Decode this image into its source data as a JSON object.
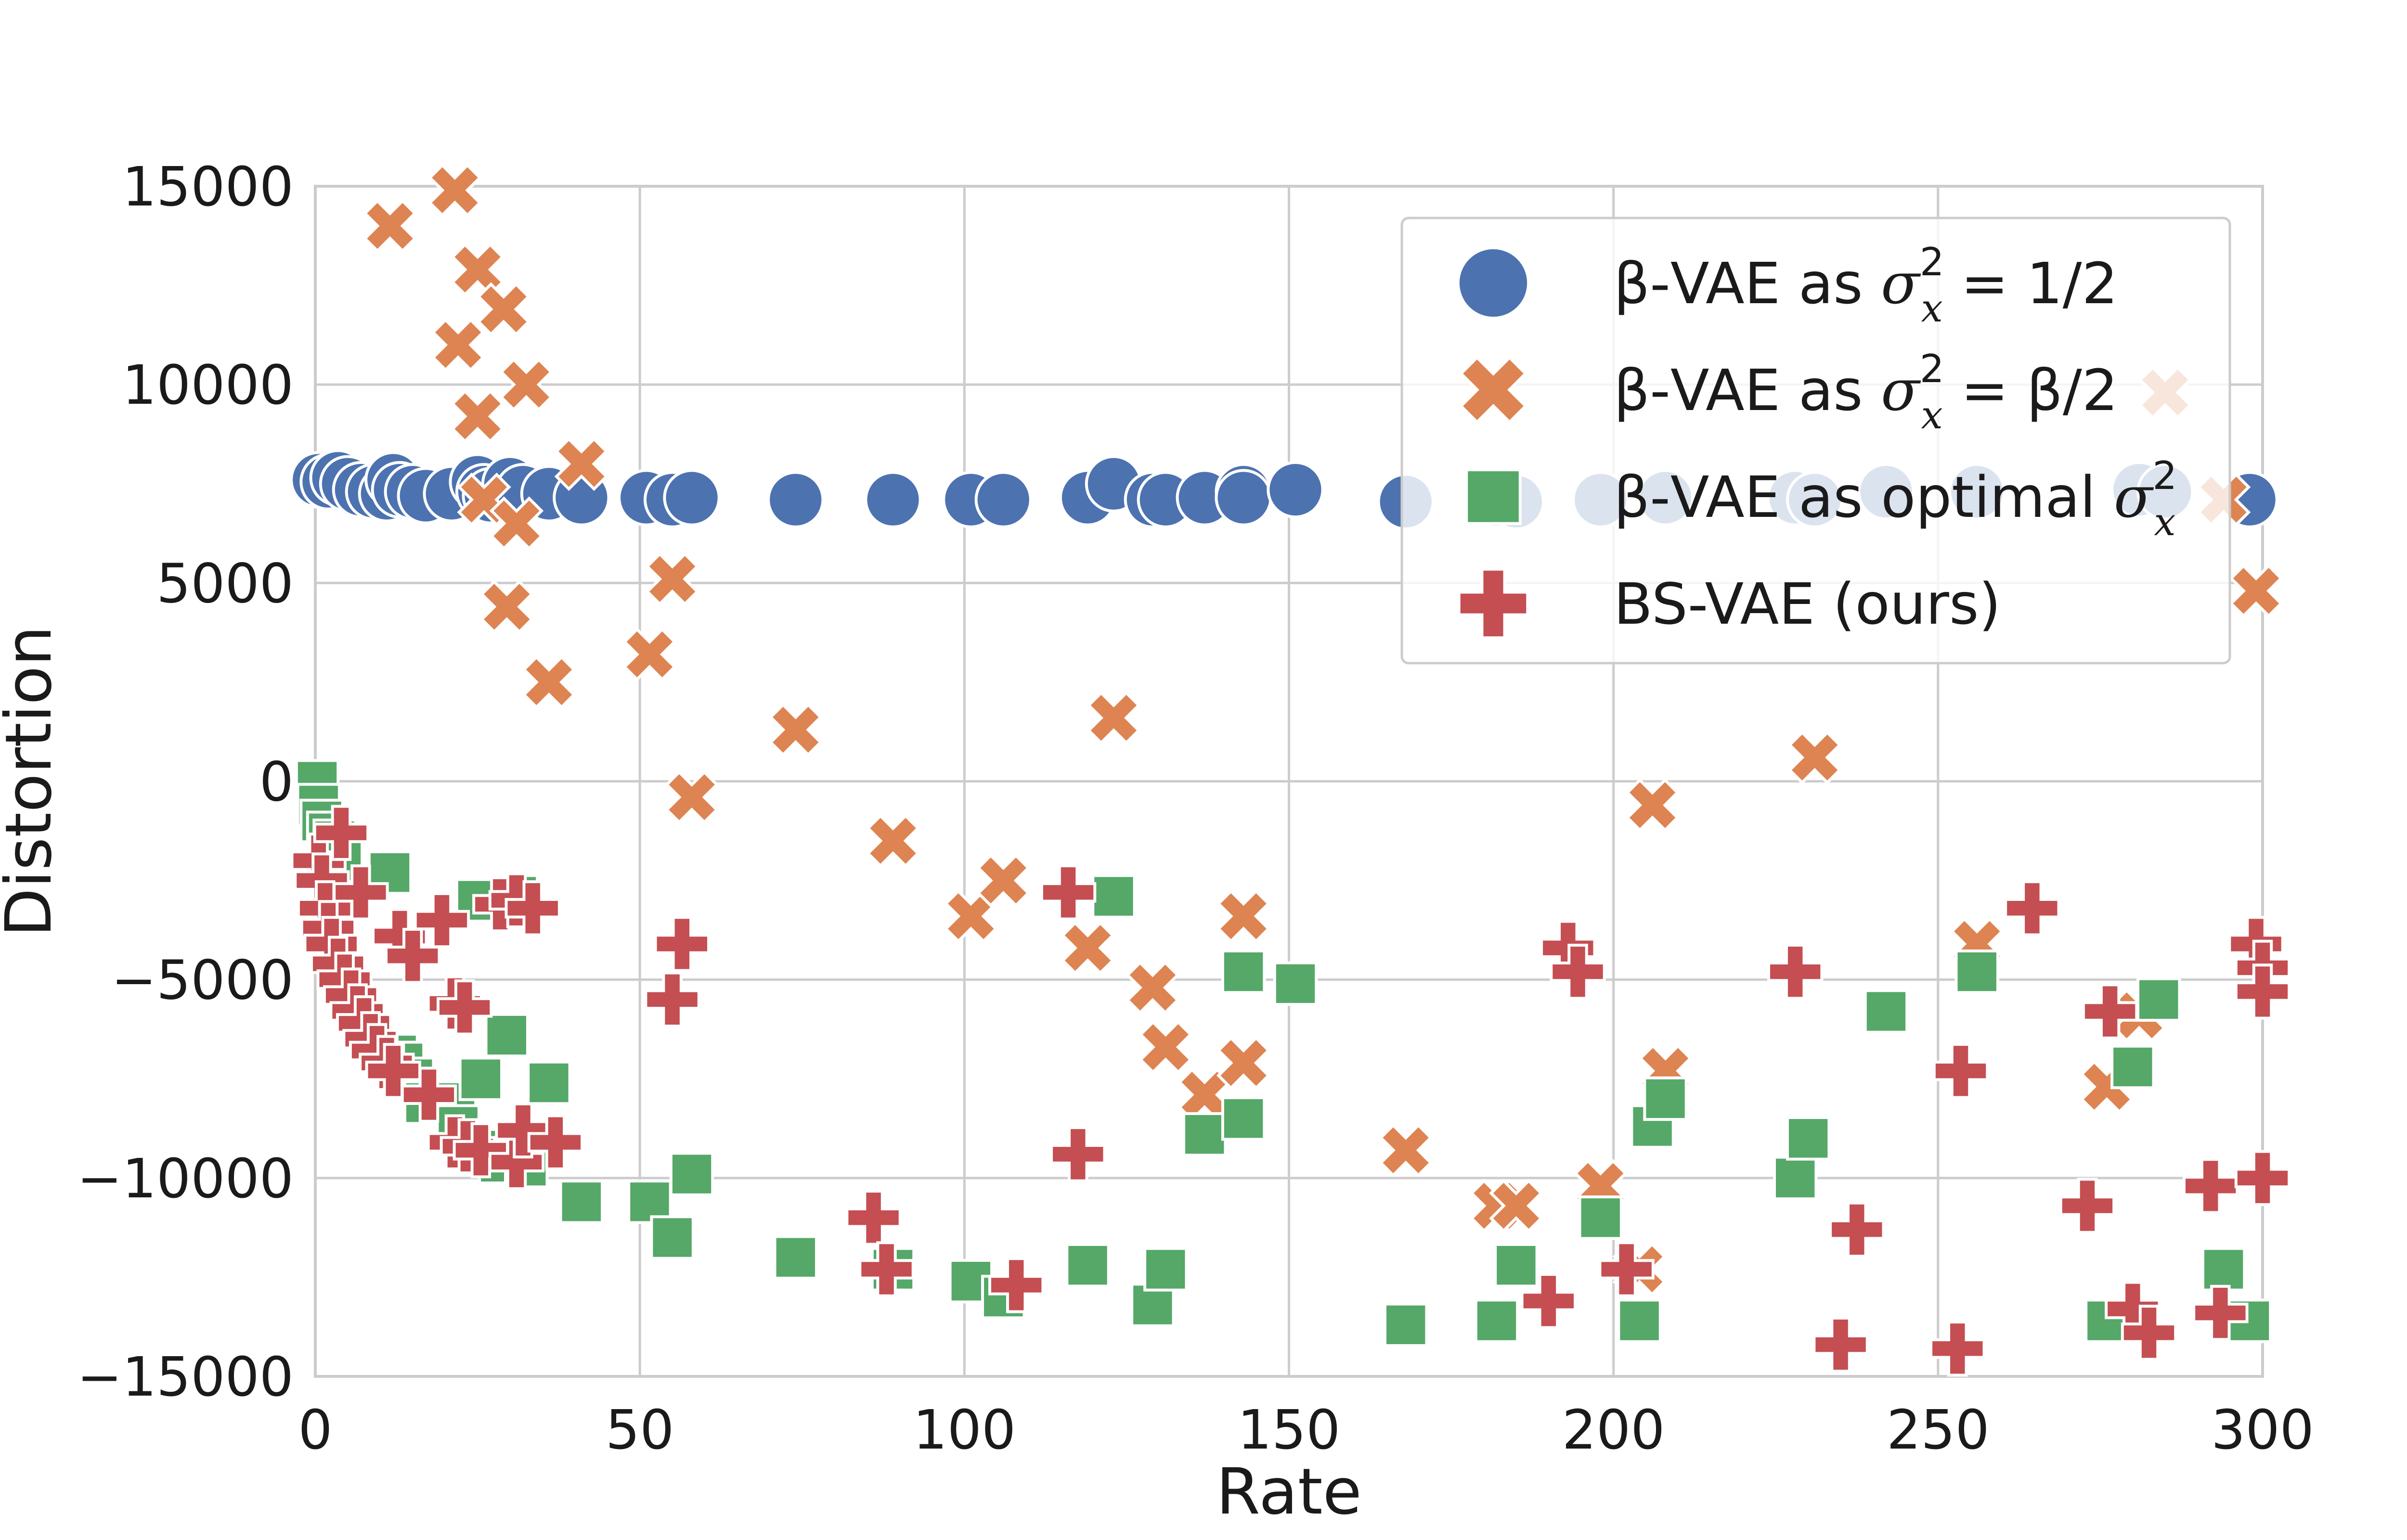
{
  "chart_data": {
    "type": "scatter",
    "xlabel": "Rate",
    "ylabel": "Distortion",
    "xlim": [
      0,
      300
    ],
    "ylim": [
      -15000,
      15000
    ],
    "xticks": [
      "0",
      "50",
      "100",
      "150",
      "200",
      "250",
      "300"
    ],
    "yticks": [
      "15000",
      "10000",
      "5000",
      "0",
      "−5000",
      "−10000",
      "−15000"
    ],
    "grid": true,
    "legend_position": "top-right",
    "series": [
      {
        "name": "β-VAE as σx2 = 1/2",
        "legend": {
          "pre": "β-VAE as ",
          "sym": "σ",
          "sub": "x",
          "sup": "2",
          "post": " = 1/2"
        },
        "marker": "circle",
        "color": "#4c72b0",
        "points": [
          [
            0.5,
            7600
          ],
          [
            2,
            7550
          ],
          [
            3.5,
            7650
          ],
          [
            5,
            7500
          ],
          [
            7,
            7350
          ],
          [
            9,
            7300
          ],
          [
            11,
            7250
          ],
          [
            12,
            7600
          ],
          [
            13,
            7350
          ],
          [
            15,
            7300
          ],
          [
            17,
            7200
          ],
          [
            21,
            7250
          ],
          [
            25,
            7550
          ],
          [
            26,
            7300
          ],
          [
            27,
            7200
          ],
          [
            30,
            7500
          ],
          [
            32,
            7300
          ],
          [
            36,
            7250
          ],
          [
            41,
            7150
          ],
          [
            51,
            7150
          ],
          [
            55,
            7100
          ],
          [
            58,
            7150
          ],
          [
            74,
            7100
          ],
          [
            89,
            7100
          ],
          [
            101,
            7100
          ],
          [
            106,
            7100
          ],
          [
            119,
            7150
          ],
          [
            123,
            7500
          ],
          [
            129,
            7100
          ],
          [
            131,
            7100
          ],
          [
            137,
            7150
          ],
          [
            143,
            7300
          ],
          [
            143,
            7150
          ],
          [
            151,
            7350
          ],
          [
            168,
            7050
          ],
          [
            182,
            7100
          ],
          [
            185,
            7050
          ],
          [
            198,
            7100
          ],
          [
            208,
            7150
          ],
          [
            228,
            7150
          ],
          [
            231,
            7100
          ],
          [
            242,
            7300
          ],
          [
            256,
            7300
          ],
          [
            281,
            7350
          ],
          [
            285,
            7300
          ],
          [
            298,
            7100
          ]
        ]
      },
      {
        "name": "β-VAE as σx2 = β/2",
        "legend": {
          "pre": "β-VAE as ",
          "sym": "σ",
          "sub": "x",
          "sup": "2",
          "post": " = β/2"
        },
        "marker": "x",
        "color": "#dd8452",
        "points": [
          [
            11.5,
            14000
          ],
          [
            21.5,
            14900
          ],
          [
            22,
            11000
          ],
          [
            25,
            12900
          ],
          [
            25,
            9200
          ],
          [
            26,
            7100
          ],
          [
            29,
            11900
          ],
          [
            29.5,
            4400
          ],
          [
            31,
            6500
          ],
          [
            32.5,
            10000
          ],
          [
            36,
            2500
          ],
          [
            41,
            8000
          ],
          [
            51.5,
            3200
          ],
          [
            55,
            5100
          ],
          [
            58,
            -400
          ],
          [
            74,
            1300
          ],
          [
            89,
            -1500
          ],
          [
            101,
            -3400
          ],
          [
            106,
            -2500
          ],
          [
            119,
            -4200
          ],
          [
            123,
            1600
          ],
          [
            129,
            -5200
          ],
          [
            131,
            -6700
          ],
          [
            137,
            -7900
          ],
          [
            143,
            -3400
          ],
          [
            143,
            -7100
          ],
          [
            168,
            -9300
          ],
          [
            182,
            -10700
          ],
          [
            185,
            -10700
          ],
          [
            198,
            -10200
          ],
          [
            204,
            -12300
          ],
          [
            206,
            -600
          ],
          [
            208,
            -7300
          ],
          [
            231,
            600
          ],
          [
            256,
            -4100
          ],
          [
            276,
            -7700
          ],
          [
            281,
            -5900
          ],
          [
            285,
            9800
          ],
          [
            294,
            7100
          ],
          [
            299,
            4800
          ]
        ]
      },
      {
        "name": "β-VAE as optimal σx2",
        "legend": {
          "pre": "β-VAE as optimal ",
          "sym": "σ",
          "sub": "x",
          "sup": "2",
          "post": ""
        },
        "marker": "square",
        "color": "#55a868",
        "points": [
          [
            0.3,
            0
          ],
          [
            0.5,
            -600
          ],
          [
            1,
            -1000
          ],
          [
            2,
            -1300
          ],
          [
            3,
            -1500
          ],
          [
            3.5,
            -1800
          ],
          [
            4,
            -2000
          ],
          [
            11.5,
            -2300
          ],
          [
            12.5,
            -6900
          ],
          [
            13.5,
            -7100
          ],
          [
            15,
            -7500
          ],
          [
            17,
            -8100
          ],
          [
            21.5,
            -8100
          ],
          [
            22,
            -8700
          ],
          [
            25,
            -3000
          ],
          [
            25.5,
            -7500
          ],
          [
            27,
            -9300
          ],
          [
            28.5,
            -9600
          ],
          [
            29.5,
            -6400
          ],
          [
            31,
            -2900
          ],
          [
            32.5,
            -9700
          ],
          [
            36,
            -7600
          ],
          [
            41,
            -10600
          ],
          [
            51.5,
            -10600
          ],
          [
            55,
            -11500
          ],
          [
            58,
            -9900
          ],
          [
            74,
            -12000
          ],
          [
            89,
            -12300
          ],
          [
            101,
            -12600
          ],
          [
            106,
            -13000
          ],
          [
            119,
            -12200
          ],
          [
            123,
            -2900
          ],
          [
            129,
            -13200
          ],
          [
            131,
            -12300
          ],
          [
            137,
            -8900
          ],
          [
            143,
            -8500
          ],
          [
            143,
            -4800
          ],
          [
            151,
            -5100
          ],
          [
            168,
            -13700
          ],
          [
            182,
            -13600
          ],
          [
            185,
            -12200
          ],
          [
            198,
            -11000
          ],
          [
            204,
            -13600
          ],
          [
            206,
            -8700
          ],
          [
            208,
            -8000
          ],
          [
            228,
            -10000
          ],
          [
            230,
            -9000
          ],
          [
            242,
            -5800
          ],
          [
            256,
            -4800
          ],
          [
            276,
            -13600
          ],
          [
            280,
            -7200
          ],
          [
            284,
            -5500
          ],
          [
            294,
            -12300
          ],
          [
            298,
            -13600
          ]
        ]
      },
      {
        "name": "BS-VAE (ours)",
        "legend": {
          "pre": "BS-VAE (ours)",
          "sym": "",
          "sub": "",
          "sup": "",
          "post": ""
        },
        "marker": "plus",
        "color": "#c44e52",
        "points": [
          [
            0.5,
            -2000
          ],
          [
            1,
            -2500
          ],
          [
            1.5,
            -3200
          ],
          [
            2,
            -3700
          ],
          [
            2.5,
            -4100
          ],
          [
            3.5,
            -4600
          ],
          [
            4.5,
            -5000
          ],
          [
            5.5,
            -5400
          ],
          [
            6.5,
            -5800
          ],
          [
            7.5,
            -6100
          ],
          [
            8.5,
            -6500
          ],
          [
            9.5,
            -6800
          ],
          [
            11,
            -7100
          ],
          [
            12,
            -7300
          ],
          [
            4,
            -1300
          ],
          [
            7,
            -2800
          ],
          [
            13,
            -3900
          ],
          [
            15,
            -4400
          ],
          [
            19.5,
            -3500
          ],
          [
            17.5,
            -7900
          ],
          [
            21.5,
            -5600
          ],
          [
            23,
            -5700
          ],
          [
            21.5,
            -9100
          ],
          [
            23.5,
            -9200
          ],
          [
            25.5,
            -9300
          ],
          [
            28.5,
            -3100
          ],
          [
            31,
            -3000
          ],
          [
            33.5,
            -3200
          ],
          [
            31,
            -9600
          ],
          [
            32,
            -8800
          ],
          [
            37,
            -9100
          ],
          [
            55,
            -5500
          ],
          [
            56.5,
            -4100
          ],
          [
            86,
            -11000
          ],
          [
            88,
            -12300
          ],
          [
            108,
            -12700
          ],
          [
            116,
            -2800
          ],
          [
            117.5,
            -9400
          ],
          [
            193,
            -4200
          ],
          [
            194.5,
            -4800
          ],
          [
            190,
            -13100
          ],
          [
            202,
            -12300
          ],
          [
            228,
            -4800
          ],
          [
            235,
            -14200
          ],
          [
            237.5,
            -11300
          ],
          [
            253,
            -14300
          ],
          [
            253.5,
            -7300
          ],
          [
            264.5,
            -3200
          ],
          [
            273,
            -10700
          ],
          [
            276.5,
            -5800
          ],
          [
            280,
            -13300
          ],
          [
            282.5,
            -13900
          ],
          [
            292,
            -10200
          ],
          [
            293.5,
            -13400
          ],
          [
            299,
            -4100
          ],
          [
            300,
            -4700
          ],
          [
            300,
            -5300
          ],
          [
            300,
            -10000
          ]
        ]
      }
    ]
  }
}
